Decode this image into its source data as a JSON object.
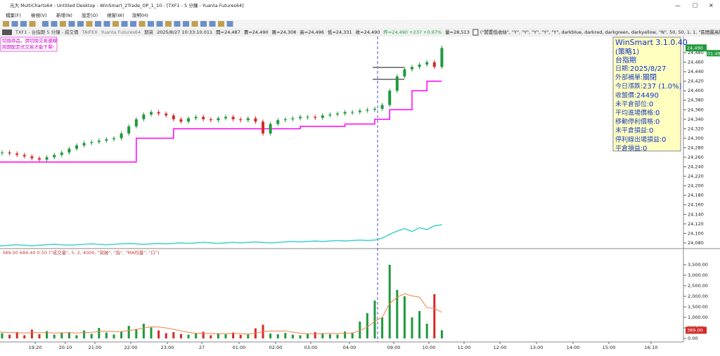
{
  "window": {
    "title": "元大 MultiCharts64 - Untitled Desktop - WinSmart_2Trade_OP_1_10 - [TXF1 - 5 分鐘 - Yuanta Futures64]",
    "menu": [
      "檔案(F)",
      "檢視(V)",
      "新增(N)",
      "設定(O)",
      "視窗(W)",
      "說明(H)"
    ]
  },
  "status_bar": {
    "symbol": "TXF1 - 台指期 5 分鐘 - 成交價",
    "exchange": "TAIFEX",
    "broker": "Yuanta Futures64",
    "kind": "期貨",
    "datetime": "2025/8/27 10:33:10.011",
    "quotes": [
      "開=24,487",
      "賣=24,490",
      "買=24,308",
      "高=24,496",
      "低=24,331",
      "收=24,490",
      "昨=24,490 +237 +0.97%",
      "量=28,513"
    ],
    "strategy": "(\"閒置低收絲\", \"Y\", \"Y\", \"Y\", \"Y\", \"Y\", darkblue, darkred, darkgreen, darkyellow, \"N\", 50, 50, 1, 1, \"區間最高點\", \"區間最低點\""
  },
  "notes": [
    "切換商品，請切換交易連線",
    "跨期配定式交易才能下單!"
  ],
  "info_panel": {
    "title": "WinSmart 3.1.0.40",
    "subtitle": "(策略1)",
    "symbol": "台指期",
    "rows": [
      {
        "label": "日期: ",
        "value": "2025/8/27"
      },
      {
        "label": "外部補單: ",
        "value": "關閉"
      },
      {
        "label": "今日漲跌: ",
        "value": "237 (1.0%)"
      },
      {
        "label": "收盤價: ",
        "value": "24490"
      },
      {
        "label": "未平倉部位: ",
        "value": "0"
      },
      {
        "label": "平均進場價格: ",
        "value": "0"
      },
      {
        "label": "移動停利價格: ",
        "value": "0"
      },
      {
        "label": "未平倉損益: ",
        "value": "0"
      },
      {
        "label": "停利線出場損益: ",
        "value": "0"
      },
      {
        "label": "平倉損益: ",
        "value": "0"
      }
    ]
  },
  "chart_data": [
    {
      "type": "candlestick",
      "ylim": [
        24071,
        24514
      ],
      "yticks": [
        {
          "value": 24080,
          "label": "24,080"
        },
        {
          "value": 24100,
          "label": "24,100"
        },
        {
          "value": 24120,
          "label": "24,120"
        },
        {
          "value": 24140,
          "label": "24,140"
        },
        {
          "value": 24160,
          "label": "24,160"
        },
        {
          "value": 24180,
          "label": "24,180"
        },
        {
          "value": 24200,
          "label": "24,200"
        },
        {
          "value": 24220,
          "label": "24,220"
        },
        {
          "value": 24240,
          "label": "24,240"
        },
        {
          "value": 24260,
          "label": "24,260"
        },
        {
          "value": 24280,
          "label": "24,280"
        },
        {
          "value": 24300,
          "label": "24,300"
        },
        {
          "value": 24320,
          "label": "24,320"
        },
        {
          "value": 24340,
          "label": "24,340"
        },
        {
          "value": 24360,
          "label": "24,360"
        },
        {
          "value": 24380,
          "label": "24,380"
        },
        {
          "value": 24400,
          "label": "24,400"
        },
        {
          "value": 24420,
          "label": "24,420"
        },
        {
          "value": 24440,
          "label": "24,440"
        },
        {
          "value": 24460,
          "label": "24,460"
        },
        {
          "value": 24480,
          "label": "24,480"
        }
      ],
      "last_price": {
        "value": 24490,
        "label": "24,490"
      },
      "countdown": "01:49",
      "close": [
        24270,
        24268,
        24265,
        24262,
        24258,
        24255,
        24260,
        24265,
        24270,
        24278,
        24285,
        24290,
        24292,
        24295,
        24298,
        24300,
        24310,
        24325,
        24340,
        24350,
        24355,
        24352,
        24348,
        24340,
        24335,
        24342,
        24345,
        24340,
        24338,
        24342,
        24345,
        24340,
        24338,
        24342,
        24335,
        24310,
        24330,
        24338,
        24340,
        24342,
        24345,
        24345,
        24343,
        24348,
        24350,
        24352,
        24355,
        24355,
        24358,
        24360,
        24362,
        24370,
        24400,
        24430,
        24445,
        24450,
        24455,
        24460,
        24450,
        24490
      ],
      "up_color": "#1e9a3c",
      "down_color": "#d42a2a",
      "stop_line": {
        "color": "#ff00ff",
        "values": [
          24250,
          24250,
          24250,
          24250,
          24250,
          24250,
          24250,
          24250,
          24250,
          24250,
          24250,
          24250,
          24250,
          24250,
          24250,
          24250,
          24250,
          24250,
          24300,
          24300,
          24300,
          24300,
          24300,
          24320,
          24320,
          24320,
          24320,
          24320,
          24320,
          24320,
          24320,
          24320,
          24320,
          24320,
          24320,
          24320,
          24320,
          24320,
          24320,
          24320,
          24325,
          24325,
          24325,
          24325,
          24325,
          24325,
          24330,
          24330,
          24330,
          24330,
          24340,
          24340,
          24360,
          24360,
          24360,
          24400,
          24400,
          24420,
          24420,
          24420
        ]
      },
      "indicator_line": {
        "color": "#40d0c8",
        "values": [
          24074,
          24075,
          24076,
          24075,
          24074,
          24075,
          24076,
          24077,
          24076,
          24075,
          24076,
          24077,
          24078,
          24077,
          24076,
          24077,
          24078,
          24079,
          24078,
          24077,
          24078,
          24079,
          24078,
          24079,
          24080,
          24079,
          24080,
          24081,
          24080,
          24079,
          24080,
          24081,
          24080,
          24081,
          24082,
          24081,
          24080,
          24081,
          24082,
          24083,
          24082,
          24083,
          24084,
          24083,
          24084,
          24085,
          24084,
          24085,
          24086,
          24085,
          24086,
          24090,
          24098,
          24105,
          24110,
          24104,
          24112,
          24108,
          24116,
          24118
        ]
      }
    },
    {
      "type": "volume",
      "header": "389.00  684.40  0.50  (\"成交量\", 5, 2, 4000, \"突破\", \"指\", \"MA均量\", \"口\")",
      "ylim": [
        -167,
        3867
      ],
      "yticks": [
        {
          "value": 0,
          "label": "0.00"
        },
        {
          "value": 500,
          "label": "500.00"
        },
        {
          "value": 1000,
          "label": "1,000.00"
        },
        {
          "value": 1500,
          "label": "1,500.00"
        },
        {
          "value": 2000,
          "label": "2,000.00"
        },
        {
          "value": 2500,
          "label": "2,500.00"
        },
        {
          "value": 3000,
          "label": "3,000.00"
        },
        {
          "value": 3500,
          "label": "3,500.00"
        }
      ],
      "last_value": {
        "value": 389,
        "label": "389.00"
      },
      "values": [
        250,
        180,
        300,
        150,
        420,
        200,
        350,
        180,
        260,
        300,
        150,
        380,
        220,
        500,
        280,
        190,
        330,
        600,
        450,
        700,
        520,
        380,
        250,
        300,
        210,
        180,
        260,
        320,
        150,
        240,
        200,
        280,
        170,
        190,
        480,
        650,
        230,
        200,
        260,
        180,
        150,
        220,
        300,
        250,
        200,
        180,
        330,
        280,
        800,
        1200,
        1800,
        1000,
        3500,
        2300,
        2000,
        1000,
        1300,
        700,
        2100,
        389
      ],
      "ma": {
        "color": "#f08040",
        "values": [
          300,
          280,
          270,
          260,
          280,
          270,
          280,
          260,
          270,
          280,
          260,
          280,
          290,
          330,
          340,
          320,
          330,
          380,
          420,
          500,
          550,
          540,
          500,
          430,
          360,
          290,
          240,
          250,
          230,
          230,
          230,
          240,
          220,
          210,
          250,
          330,
          350,
          350,
          360,
          300,
          250,
          220,
          220,
          230,
          240,
          230,
          240,
          250,
          380,
          540,
          820,
          1000,
          1660,
          1960,
          2120,
          2020,
          1960,
          1460,
          1420,
          1240
        ]
      },
      "x_labels": [
        "19:20",
        "20:10",
        "21:00",
        "22:00",
        "23:00",
        "27",
        "01:00",
        "02:00",
        "03:00",
        "04:00",
        "09:00",
        "10:00",
        "11:00",
        "12:00",
        "13:00",
        "14:00",
        "15:00",
        "16:10"
      ]
    }
  ]
}
